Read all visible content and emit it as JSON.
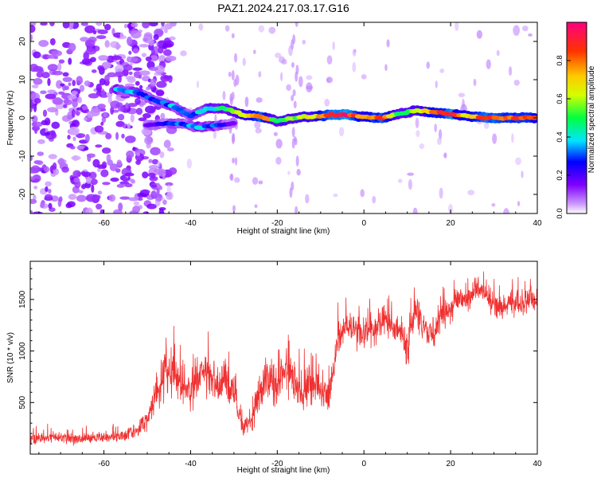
{
  "figure": {
    "title": "PAZ1.2024.217.03.17.G16"
  },
  "chart_data": [
    {
      "type": "heatmap",
      "xlabel": "Height of straight line (km)",
      "ylabel": "Frequency (Hz)",
      "xlim": [
        -77,
        40
      ],
      "ylim": [
        -25,
        25
      ],
      "xticks": [
        -60,
        -40,
        -20,
        0,
        20,
        40
      ],
      "yticks": [
        -20,
        -10,
        0,
        10,
        20
      ],
      "colorbar": {
        "label": "Normalized spectral amplitude",
        "range": [
          0.0,
          1.0
        ],
        "ticks": [
          "0.0",
          "0.2",
          "0.4",
          "0.6",
          "0.8"
        ],
        "colormap": "rainbow (violet to red)"
      },
      "ridge": {
        "x": [
          -57,
          -52,
          -48,
          -44,
          -40,
          -36,
          -32,
          -28,
          -24,
          -20,
          -16,
          -12,
          -8,
          -4,
          0,
          4,
          8,
          12,
          16,
          20,
          24,
          28,
          32,
          36,
          40
        ],
        "y": [
          7.5,
          6.5,
          4.5,
          3,
          0.5,
          2.5,
          2.5,
          0.8,
          0.3,
          -0.8,
          0,
          0.3,
          0.8,
          0.8,
          0.3,
          0,
          1,
          2,
          1.5,
          1,
          0.5,
          0,
          0,
          0,
          0
        ],
        "amplitude": [
          0.35,
          0.3,
          0.3,
          0.35,
          0.3,
          0.4,
          0.45,
          0.6,
          0.85,
          0.5,
          0.6,
          0.6,
          0.9,
          0.95,
          0.7,
          0.9,
          0.5,
          0.55,
          0.8,
          0.9,
          0.7,
          0.9,
          0.8,
          0.85,
          0.8
        ]
      },
      "lower_branch": {
        "x": [
          -50,
          -46,
          -42,
          -38,
          -34,
          -30
        ],
        "y": [
          -2,
          -1.5,
          -1.5,
          -2.5,
          -2,
          -1.5
        ],
        "amplitude": [
          0.2,
          0.25,
          0.3,
          0.35,
          0.3,
          0.2
        ]
      },
      "noise_region": {
        "x_from": -77,
        "x_to": -50
      }
    },
    {
      "type": "line",
      "xlabel": "Height of straight line (km)",
      "ylabel": "SNR (10 * v/v)",
      "xlim": [
        -77,
        40
      ],
      "ylim": [
        0,
        1870
      ],
      "xticks": [
        -60,
        -40,
        -20,
        0,
        20,
        40
      ],
      "yticks": [
        500,
        1000,
        1500
      ],
      "grid": false,
      "color": "#f03030",
      "series": [
        {
          "x": [
            -77,
            -72,
            -67,
            -62,
            -57,
            -52,
            -50,
            -48,
            -46,
            -44,
            -42,
            -40,
            -38,
            -36,
            -34,
            -32,
            -30,
            -28,
            -26,
            -24,
            -22,
            -20,
            -18,
            -16,
            -14,
            -12,
            -10,
            -8,
            -6,
            -4,
            -2,
            0,
            2,
            4,
            6,
            8,
            10,
            12,
            14,
            16,
            18,
            20,
            22,
            24,
            26,
            28,
            30,
            32,
            34,
            36,
            38,
            40
          ],
          "y": [
            150,
            160,
            150,
            160,
            170,
            230,
            350,
            600,
            750,
            800,
            650,
            600,
            750,
            780,
            650,
            700,
            600,
            250,
            320,
            600,
            750,
            650,
            800,
            700,
            600,
            700,
            650,
            550,
            1100,
            1250,
            1200,
            1150,
            1200,
            1300,
            1250,
            1200,
            1050,
            1400,
            1250,
            1150,
            1350,
            1400,
            1550,
            1500,
            1600,
            1550,
            1450,
            1400,
            1500,
            1450,
            1500,
            1500
          ],
          "spread": [
            90,
            90,
            90,
            90,
            90,
            120,
            180,
            280,
            350,
            350,
            300,
            300,
            320,
            330,
            300,
            300,
            250,
            120,
            150,
            300,
            350,
            300,
            350,
            320,
            300,
            320,
            280,
            250,
            300,
            250,
            250,
            250,
            250,
            250,
            250,
            300,
            300,
            300,
            250,
            250,
            200,
            200,
            200,
            200,
            200,
            200,
            200,
            200,
            200,
            200,
            200,
            200
          ]
        }
      ]
    }
  ]
}
